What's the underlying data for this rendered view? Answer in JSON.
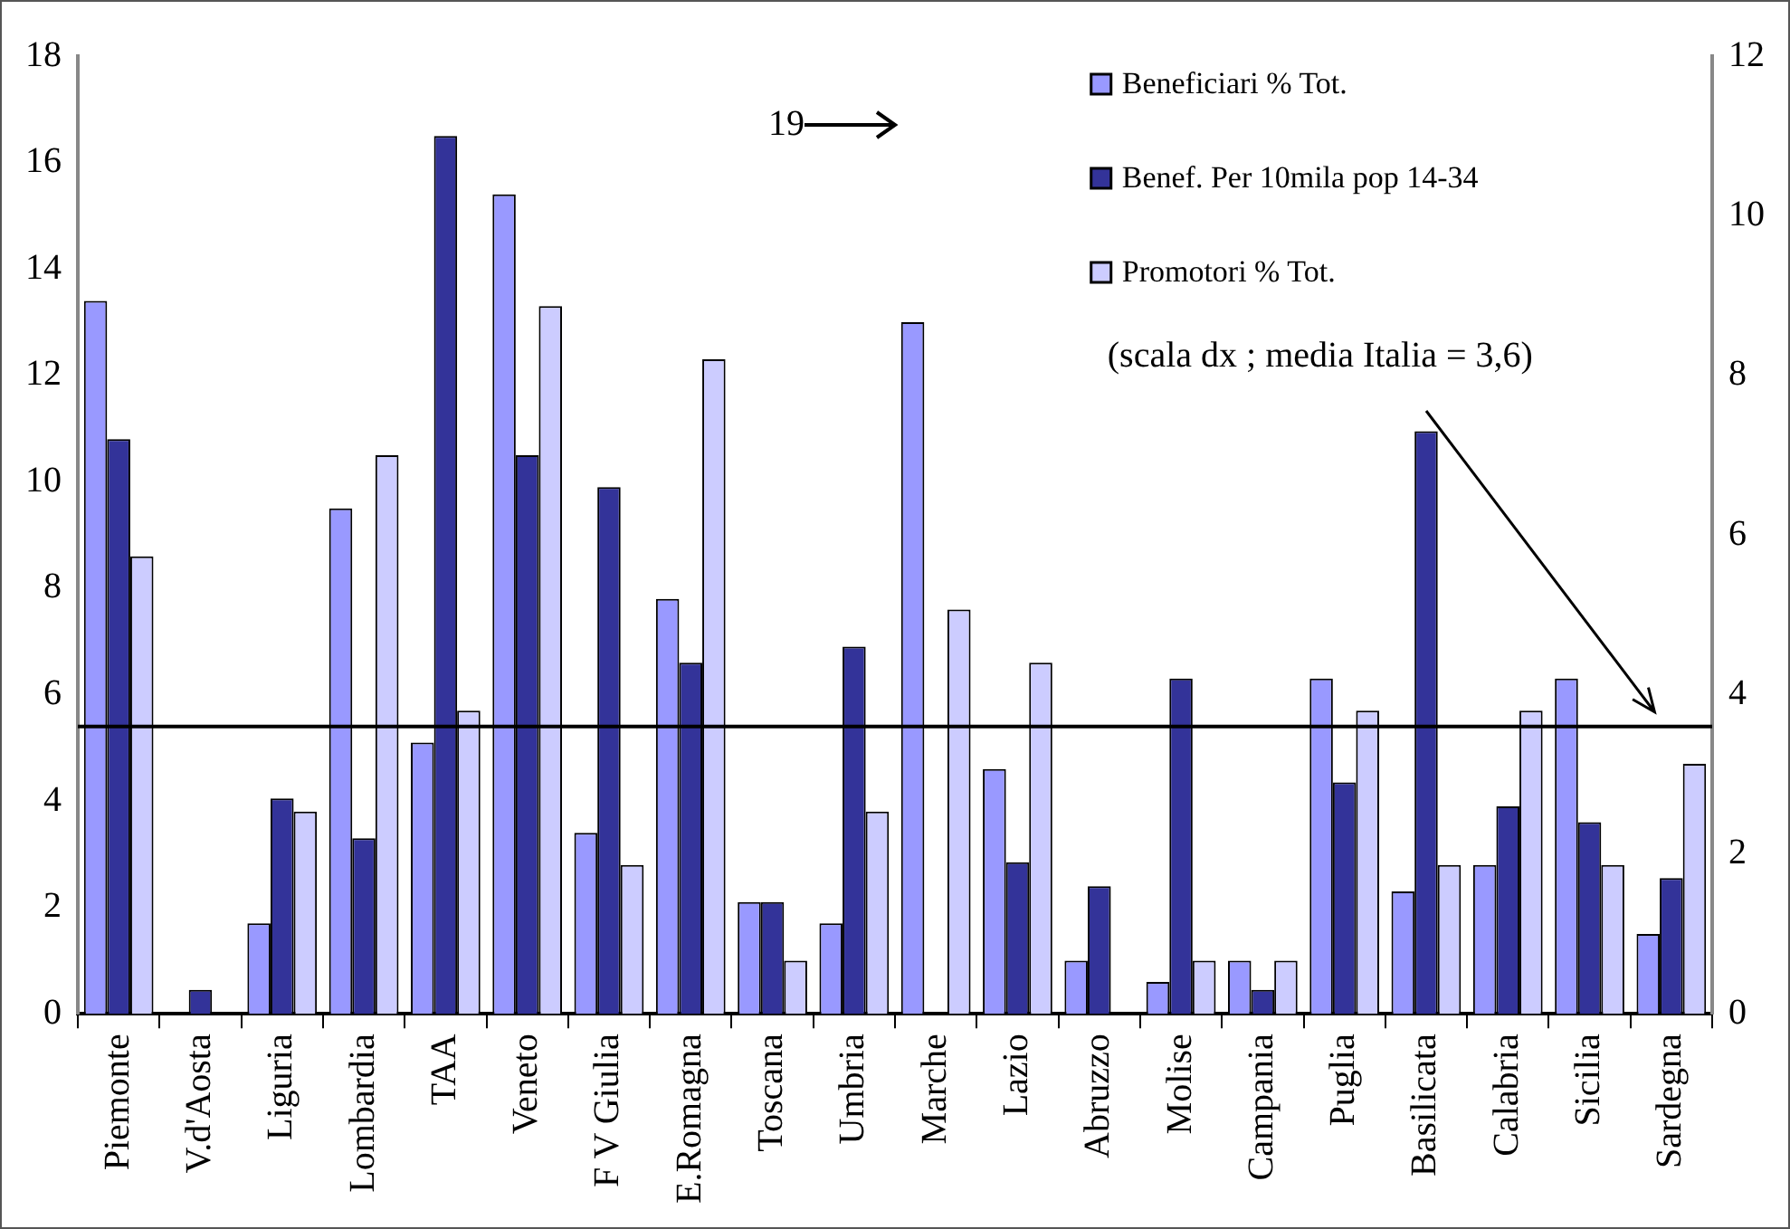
{
  "chart_data": {
    "type": "bar",
    "categories": [
      "Piemonte",
      "V.d'Aosta",
      "Liguria",
      "Lombardia",
      "TAA",
      "Veneto",
      "F V Giulia",
      "E.Romagna",
      "Toscana",
      "Umbria",
      "Marche",
      "Lazio",
      "Abruzzo",
      "Molise",
      "Campania",
      "Puglia",
      "Basilicata",
      "Calabria",
      "Sicilia",
      "Sardegna"
    ],
    "series": [
      {
        "name": "Beneficiari % Tot.",
        "color": "#9999ff",
        "values": [
          13.4,
          0,
          1.7,
          9.5,
          5.1,
          15.4,
          3.4,
          7.8,
          2.1,
          1.7,
          13,
          4.6,
          1,
          0.6,
          1,
          6.3,
          2.3,
          2.8,
          6.3,
          1.5
        ]
      },
      {
        "name": "Benef. Per 10mila pop 14-34",
        "color": "#333399",
        "axis": "y2",
        "values": [
          7.2,
          0.3,
          2.7,
          2.2,
          11,
          7,
          6.6,
          4.4,
          1.4,
          4.6,
          null,
          1.9,
          1.6,
          4.2,
          0.3,
          2.9,
          7.3,
          2.6,
          2.4,
          1.7
        ]
      },
      {
        "name": "Promotori % Tot.",
        "color": "#ccccff",
        "values": [
          8.6,
          0,
          3.8,
          10.5,
          5.7,
          13.3,
          2.8,
          12.3,
          1,
          3.8,
          7.6,
          6.6,
          0,
          1,
          1,
          5.7,
          2.8,
          5.7,
          2.8,
          4.7
        ]
      }
    ],
    "ylim": [
      0,
      18
    ],
    "yticks": [
      0,
      2,
      4,
      6,
      8,
      10,
      12,
      14,
      16,
      18
    ],
    "y2lim": [
      0,
      12
    ],
    "y2ticks": [
      0,
      2,
      4,
      6,
      8,
      10,
      12
    ],
    "ref_lines": [
      {
        "axis": "y2",
        "value": 3.6
      }
    ],
    "annotations": [
      "19",
      "(scala dx ; media Italia = 3,6)"
    ],
    "legend": "top right",
    "grid": false
  }
}
